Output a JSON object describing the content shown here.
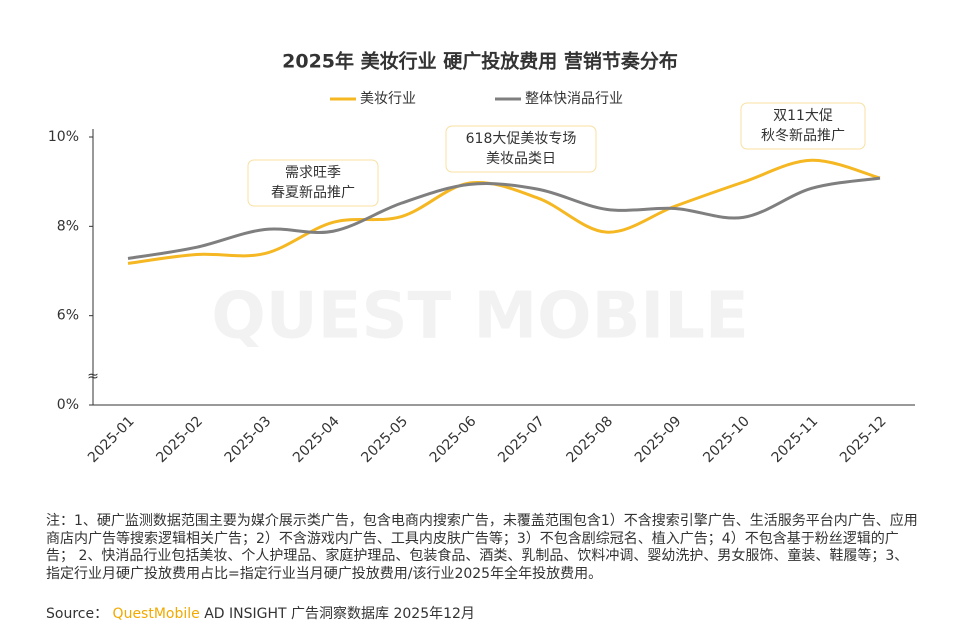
{
  "chart_data": {
    "type": "line",
    "title": "2025年 美妆行业 硬广投放费用 营销节奏分布",
    "categories": [
      "2025-01",
      "2025-02",
      "2025-03",
      "2025-04",
      "2025-05",
      "2025-06",
      "2025-07",
      "2025-08",
      "2025-09",
      "2025-10",
      "2025-11",
      "2025-12"
    ],
    "series": [
      {
        "name": "美妆行业",
        "color": "#f5b722",
        "values": [
          7.17,
          7.37,
          7.39,
          8.09,
          8.22,
          8.97,
          8.63,
          7.87,
          8.45,
          8.99,
          9.48,
          9.08
        ]
      },
      {
        "name": "整体快消品行业",
        "color": "#7f7f7f",
        "values": [
          7.28,
          7.53,
          7.93,
          7.89,
          8.52,
          8.94,
          8.83,
          8.38,
          8.4,
          8.2,
          8.85,
          9.08
        ]
      }
    ],
    "ylim": [
      0,
      10
    ],
    "ybreak": [
      0,
      6
    ],
    "axis_break_symbol": "≈",
    "yticks": [
      {
        "value": 0,
        "label": "0%"
      },
      {
        "value": 6,
        "label": "6%"
      },
      {
        "value": 8,
        "label": "8%"
      },
      {
        "value": 10,
        "label": "10%"
      }
    ],
    "legend": "top",
    "annotations": [
      {
        "lines": [
          "需求旺季",
          "春夏新品推广"
        ]
      },
      {
        "lines": [
          "618大促美妆专场",
          "美妆品类日"
        ]
      },
      {
        "lines": [
          "双11大促",
          "秋冬新品推广"
        ]
      }
    ],
    "watermark": "QUEST MOBILE",
    "note": "注：1、硬广监测数据范围主要为媒介展示类广告，包含电商内搜索广告，未覆盖范围包含1）不含搜索引擎广告、生活服务平台内广告、应用商店内广告等搜索逻辑相关广告；2）不含游戏内广告、工具内皮肤广告等；3）不包含剧综冠名、植入广告；4）不包含基于粉丝逻辑的广告；  2、快消品行业包括美妆、个人护理品、家庭护理品、包装食品、酒类、乳制品、饮料冲调、婴幼洗护、男女服饰、童装、鞋履等；3、指定行业月硬广投放费用占比=指定行业当月硬广投放费用/该行业2025年全年投放费用。",
    "source_label": "Source：",
    "source_brand": "QuestMobile",
    "source_text": "AD INSIGHT 广告洞察数据库 2025年12月"
  }
}
